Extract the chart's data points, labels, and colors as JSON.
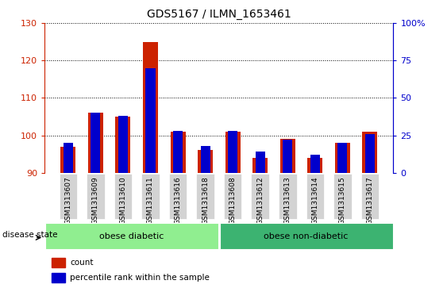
{
  "title": "GDS5167 / ILMN_1653461",
  "samples": [
    "GSM1313607",
    "GSM1313609",
    "GSM1313610",
    "GSM1313611",
    "GSM1313616",
    "GSM1313618",
    "GSM1313608",
    "GSM1313612",
    "GSM1313613",
    "GSM1313614",
    "GSM1313615",
    "GSM1313617"
  ],
  "count_values": [
    97,
    106,
    105,
    125,
    101,
    96,
    101,
    94,
    99,
    94,
    98,
    101
  ],
  "percentile_values": [
    20,
    40,
    38,
    70,
    28,
    18,
    28,
    14,
    22,
    12,
    20,
    26
  ],
  "ylim_left": [
    90,
    130
  ],
  "ylim_right": [
    0,
    100
  ],
  "yticks_left": [
    90,
    100,
    110,
    120,
    130
  ],
  "yticks_right": [
    0,
    25,
    50,
    75,
    100
  ],
  "ytick_labels_right": [
    "0",
    "25",
    "50",
    "75",
    "100%"
  ],
  "groups": [
    {
      "label": "obese diabetic",
      "start": 0,
      "end": 6,
      "color": "#90EE90"
    },
    {
      "label": "obese non-diabetic",
      "start": 6,
      "end": 12,
      "color": "#3CB371"
    }
  ],
  "red_bar_width": 0.55,
  "blue_bar_width": 0.35,
  "red_color": "#CC2200",
  "blue_color": "#0000CC",
  "left_axis_color": "#CC2200",
  "right_axis_color": "#0000CC",
  "grid_color": "black",
  "bg_color": "#D3D3D3",
  "disease_label": "disease state",
  "legend_items": [
    {
      "label": "count",
      "color": "#CC2200"
    },
    {
      "label": "percentile rank within the sample",
      "color": "#0000CC"
    }
  ]
}
